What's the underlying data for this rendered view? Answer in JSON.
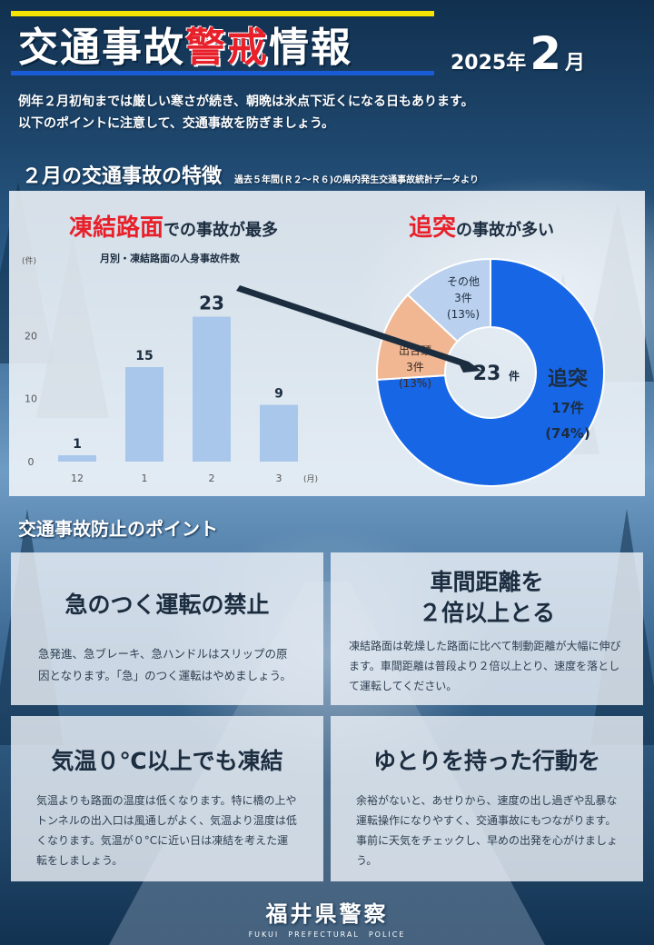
{
  "header": {
    "title_part1": "交通事故",
    "title_part2": "警戒",
    "title_part3": "情報",
    "year_text": "2025年",
    "month_num": "2",
    "month_suffix": "月"
  },
  "intro": {
    "line1": "例年２月初旬までは厳しい寒さが続き、朝晩は氷点下近くになる日もあります。",
    "line2": "以下のポイントに注意して、交通事故を防ぎましょう。"
  },
  "features": {
    "heading": "２月の交通事故の特徴",
    "source": "過去５年間(Ｒ２～Ｒ６)の県内発生交通事故統計データより",
    "left_title_red": "凍結路面",
    "left_title_rest": "での事故が最多",
    "chart_title": "月別・凍結路面の人身事故件数",
    "right_title_red": "追突",
    "right_title_rest": "の事故が多い"
  },
  "chart_data": [
    {
      "type": "bar",
      "title": "月別・凍結路面の人身事故件数",
      "ylabel": "(件)",
      "xlabel": "(月)",
      "categories": [
        "12",
        "1",
        "2",
        "3"
      ],
      "values": [
        1,
        15,
        23,
        9
      ],
      "value_labels": [
        "1",
        "15",
        "23",
        "9"
      ],
      "ylim": [
        0,
        30
      ],
      "yticks": [
        "0",
        "10",
        "20"
      ],
      "bar_color": "#a9c7eb",
      "grid": false
    },
    {
      "type": "pie",
      "center_label": "23",
      "center_unit": "件",
      "slices": [
        {
          "name": "追突",
          "count": "17件",
          "pct": "(74%)",
          "value": 74,
          "color": "#1766e6"
        },
        {
          "name": "出合頭",
          "count": "3件",
          "pct": "(13%)",
          "value": 13,
          "color": "#f0b792"
        },
        {
          "name": "その他",
          "count": "3件",
          "pct": "(13%)",
          "value": 13,
          "color": "#b9d0ee"
        }
      ]
    }
  ],
  "prevention": {
    "heading": "交通事故防止のポイント",
    "cards": [
      {
        "title": "急のつく運転の禁止",
        "body": "急発進、急ブレーキ、急ハンドルはスリップの原因となります。「急」のつく運転はやめましょう。"
      },
      {
        "title_line1": "車間距離を",
        "title_line2": "２倍以上とる",
        "body": "凍結路面は乾燥した路面に比べて制動距離が大幅に伸びます。車間距離は普段より２倍以上とり、速度を落として運転してください。"
      },
      {
        "title": "気温０℃以上でも凍結",
        "body": "気温よりも路面の温度は低くなります。特に橋の上やトンネルの出入口は風通しがよく、気温より温度は低くなります。気温が０°Cに近い日は凍結を考えた運転をしましょう。"
      },
      {
        "title": "ゆとりを持った行動を",
        "body": "余裕がないと、あせりから、速度の出し過ぎや乱暴な運転操作になりやすく、交通事故にもつながります。事前に天気をチェックし、早めの出発を心がけましょう。"
      }
    ]
  },
  "footer": {
    "org": "福井県警察",
    "org_en": "FUKUI　PREFECTURAL　POLICE"
  }
}
